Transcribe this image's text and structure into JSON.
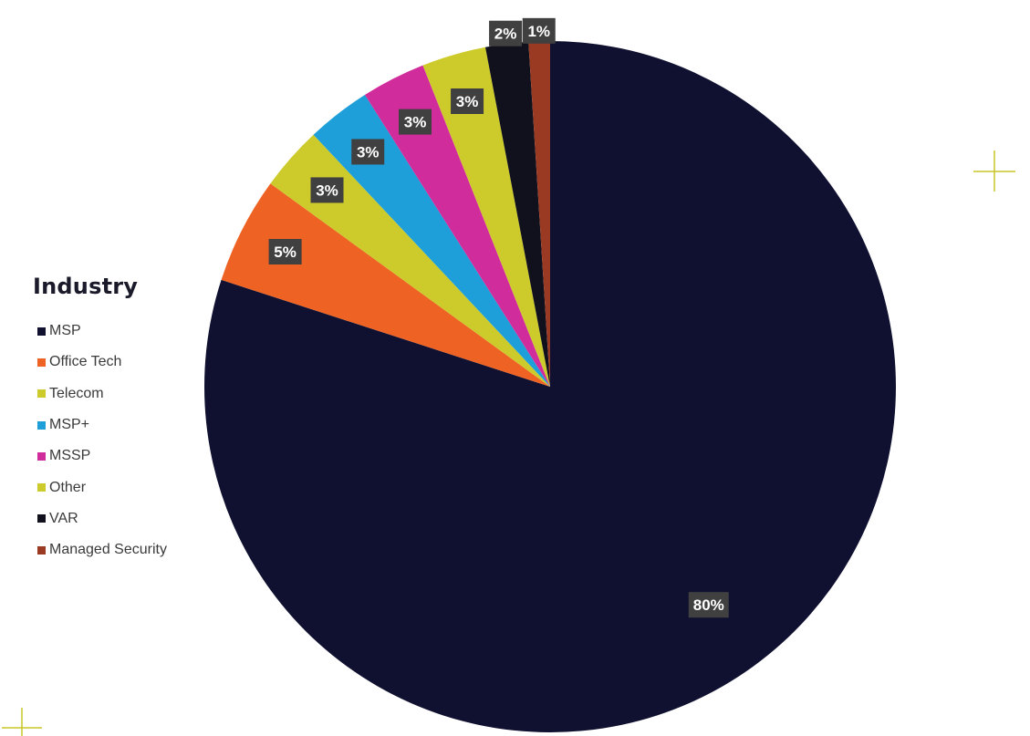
{
  "chart_data": {
    "type": "pie",
    "title": "",
    "legend_title": "Industry",
    "legend_position": "left",
    "start_angle": "12 o'clock, clockwise",
    "slices": [
      {
        "name": "MSP",
        "value": 80,
        "label": "80%",
        "color": "#101130"
      },
      {
        "name": "Office Tech",
        "value": 5,
        "label": "5%",
        "color": "#ee6324"
      },
      {
        "name": "Telecom",
        "value": 3,
        "label": "3%",
        "color": "#cdcb2c"
      },
      {
        "name": "MSP+",
        "value": 3,
        "label": "3%",
        "color": "#1e9fd9"
      },
      {
        "name": "MSSP",
        "value": 3,
        "label": "3%",
        "color": "#d12c9c"
      },
      {
        "name": "Other",
        "value": 3,
        "label": "3%",
        "color": "#cdcb2c"
      },
      {
        "name": "VAR",
        "value": 2,
        "label": "2%",
        "color": "#11111e"
      },
      {
        "name": "Managed Security",
        "value": 1,
        "label": "1%",
        "color": "#9b3a22"
      }
    ]
  },
  "decorations": {
    "plus_color": "#c8c626"
  }
}
